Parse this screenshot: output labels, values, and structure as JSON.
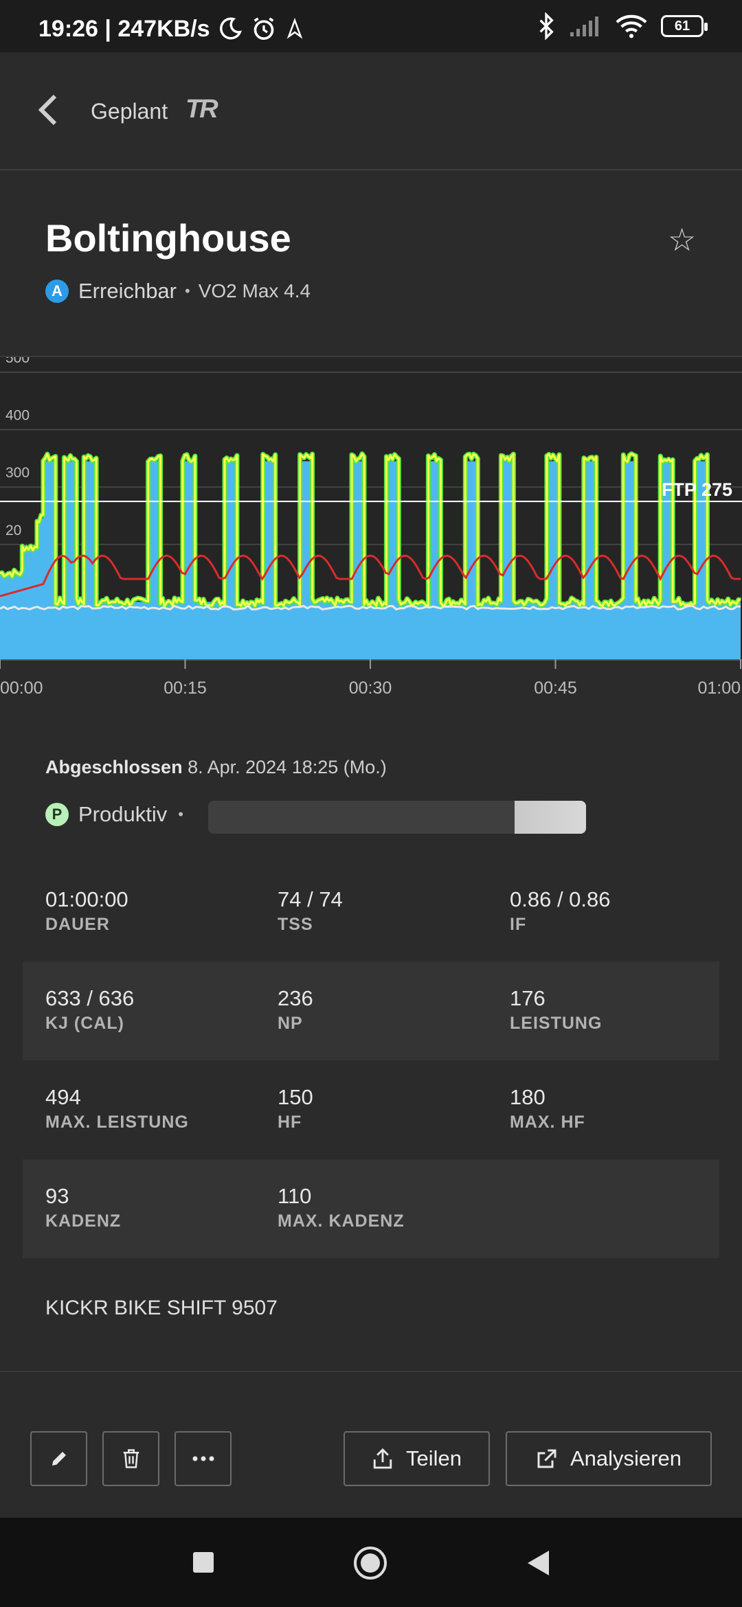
{
  "status_bar": {
    "time_speed": "19:26 | 247KB/s",
    "battery": "61"
  },
  "header": {
    "title": "Geplant",
    "logo_text": "TR"
  },
  "workout": {
    "name": "Boltinghouse",
    "level_badge": "A",
    "level_label": "Erreichbar",
    "zone": "VO2 Max 4.4"
  },
  "chart_data": {
    "type": "area",
    "y_tick_labels": [
      "500",
      "400",
      "300",
      "20"
    ],
    "x_tick_labels": [
      "00:00",
      "00:15",
      "00:30",
      "00:45",
      "01:00"
    ],
    "ylim": [
      0,
      500
    ],
    "xlim_minutes": [
      0,
      60
    ],
    "ftp_line": {
      "label": "FTP 275",
      "value": 275
    },
    "colors": {
      "target_power": "#4db8f0",
      "actual_power": "#ffff4d",
      "actual_power_outline": "#59e83a",
      "heart_rate": "#d92b2b",
      "cadence": "#e8e8e8",
      "ftp": "#ffffff"
    },
    "base_power_watts": 100,
    "intervals_power_watts": 345,
    "intervals_start_minutes": [
      3.5,
      5.2,
      6.8,
      12.0,
      14.8,
      18.2,
      21.3,
      24.3,
      28.5,
      31.3,
      34.7,
      37.7,
      40.6,
      44.3,
      47.3,
      50.5,
      53.5,
      56.3
    ],
    "interval_duration_minutes": 1.0,
    "warmup": [
      {
        "start": 0.0,
        "end": 1.8,
        "watts": 150
      },
      {
        "start": 1.8,
        "end": 3.0,
        "watts": 195
      },
      {
        "start": 3.0,
        "end": 3.5,
        "watts": 245
      }
    ]
  },
  "completed": {
    "label": "Abgeschlossen",
    "date": "8. Apr. 2024 18:25 (Mo.)",
    "progression_badge": "P",
    "progression_label": "Produktiv",
    "progression_bar": {
      "start_fraction": 0.81,
      "end_fraction": 1.0
    }
  },
  "stats": [
    [
      {
        "value": "01:00:00",
        "label": "DAUER"
      },
      {
        "value": "74 / 74",
        "label": "TSS"
      },
      {
        "value": "0.86 / 0.86",
        "label": "IF"
      }
    ],
    [
      {
        "value": "633 / 636",
        "label": "KJ (CAL)"
      },
      {
        "value": "236",
        "label": "NP"
      },
      {
        "value": "176",
        "label": "LEISTUNG"
      }
    ],
    [
      {
        "value": "494",
        "label": "MAX. LEISTUNG"
      },
      {
        "value": "150",
        "label": "HF"
      },
      {
        "value": "180",
        "label": "MAX. HF"
      }
    ],
    [
      {
        "value": "93",
        "label": "KADENZ"
      },
      {
        "value": "110",
        "label": "MAX. KADENZ"
      }
    ]
  ],
  "device": "KICKR BIKE SHIFT 9507",
  "actions": {
    "share_label": "Teilen",
    "analyze_label": "Analysieren"
  },
  "icons": {
    "back": "chevron-left-icon",
    "favorite": "star-icon",
    "edit": "pencil-icon",
    "delete": "trash-icon",
    "more": "ellipsis-icon",
    "share": "upload-icon",
    "analyze": "external-link-icon"
  }
}
